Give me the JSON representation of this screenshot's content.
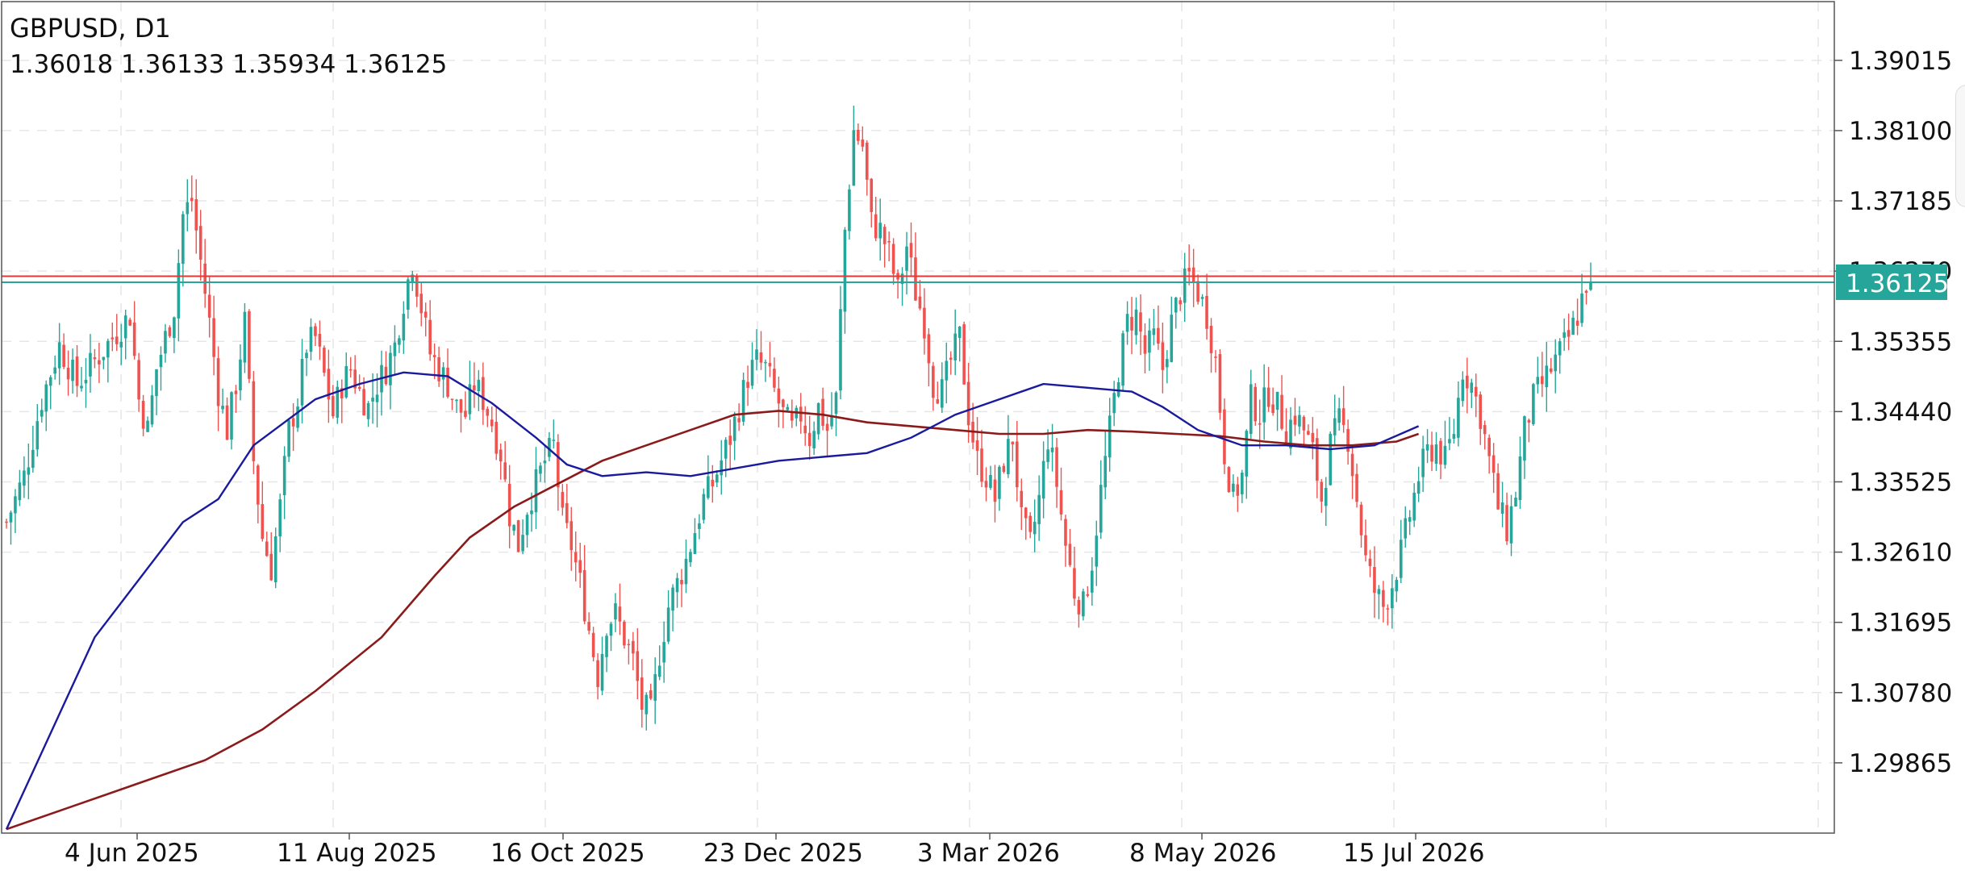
{
  "header": {
    "symbol_timeframe": "GBPUSD, D1",
    "ohlc": "1.36018 1.36133 1.35934 1.36125"
  },
  "price_tag": "1.36125",
  "colors": {
    "bull": "#26a69a",
    "bear": "#ef5350",
    "ma_fast": "#1a1a9e",
    "ma_slow": "#8b1a1a",
    "grid": "#e6e6e6",
    "price_line": "#26a69a",
    "level_line": "#e53935"
  },
  "chart_data": {
    "type": "candlestick",
    "symbol": "GBPUSD",
    "timeframe": "D1",
    "y_ticks": [
      "1.29865",
      "1.30780",
      "1.31695",
      "1.32610",
      "1.33525",
      "1.34440",
      "1.35355",
      "1.36270",
      "1.37185",
      "1.38100",
      "1.39015"
    ],
    "ylim": [
      1.2895,
      1.3978
    ],
    "x_ticks": [
      "4 Jun 2025",
      "11 Aug 2025",
      "16 Oct 2025",
      "23 Dec 2025",
      "3 Mar 2026",
      "8 May 2026",
      "15 Jul 2026"
    ],
    "last_price": 1.36125,
    "level_line": 1.3614,
    "price_anchors": [
      [
        0,
        1.33
      ],
      [
        4,
        1.336
      ],
      [
        8,
        1.346
      ],
      [
        12,
        1.353
      ],
      [
        16,
        1.348
      ],
      [
        20,
        1.351
      ],
      [
        24,
        1.354
      ],
      [
        28,
        1.357
      ],
      [
        30,
        1.346
      ],
      [
        32,
        1.342
      ],
      [
        34,
        1.35
      ],
      [
        38,
        1.358
      ],
      [
        40,
        1.37
      ],
      [
        42,
        1.372
      ],
      [
        44,
        1.364
      ],
      [
        46,
        1.356
      ],
      [
        48,
        1.347
      ],
      [
        50,
        1.342
      ],
      [
        52,
        1.348
      ],
      [
        54,
        1.356
      ],
      [
        56,
        1.338
      ],
      [
        58,
        1.328
      ],
      [
        60,
        1.324
      ],
      [
        62,
        1.332
      ],
      [
        64,
        1.342
      ],
      [
        66,
        1.346
      ],
      [
        68,
        1.353
      ],
      [
        70,
        1.354
      ],
      [
        72,
        1.349
      ],
      [
        74,
        1.344
      ],
      [
        76,
        1.348
      ],
      [
        78,
        1.35
      ],
      [
        80,
        1.347
      ],
      [
        82,
        1.345
      ],
      [
        84,
        1.348
      ],
      [
        86,
        1.35
      ],
      [
        88,
        1.353
      ],
      [
        90,
        1.359
      ],
      [
        92,
        1.364
      ],
      [
        94,
        1.358
      ],
      [
        96,
        1.352
      ],
      [
        98,
        1.35
      ],
      [
        100,
        1.348
      ],
      [
        102,
        1.345
      ],
      [
        104,
        1.344
      ],
      [
        106,
        1.348
      ],
      [
        108,
        1.346
      ],
      [
        110,
        1.343
      ],
      [
        112,
        1.339
      ],
      [
        114,
        1.331
      ],
      [
        116,
        1.327
      ],
      [
        118,
        1.332
      ],
      [
        120,
        1.335
      ],
      [
        122,
        1.338
      ],
      [
        124,
        1.34
      ],
      [
        126,
        1.33
      ],
      [
        128,
        1.327
      ],
      [
        130,
        1.322
      ],
      [
        132,
        1.316
      ],
      [
        134,
        1.31
      ],
      [
        136,
        1.317
      ],
      [
        138,
        1.318
      ],
      [
        140,
        1.315
      ],
      [
        142,
        1.312
      ],
      [
        144,
        1.306
      ],
      [
        146,
        1.305
      ],
      [
        148,
        1.313
      ],
      [
        150,
        1.319
      ],
      [
        152,
        1.322
      ],
      [
        154,
        1.325
      ],
      [
        156,
        1.329
      ],
      [
        158,
        1.333
      ],
      [
        160,
        1.335
      ],
      [
        162,
        1.338
      ],
      [
        164,
        1.341
      ],
      [
        166,
        1.345
      ],
      [
        168,
        1.349
      ],
      [
        170,
        1.351
      ],
      [
        172,
        1.35
      ],
      [
        174,
        1.347
      ],
      [
        176,
        1.344
      ],
      [
        178,
        1.342
      ],
      [
        180,
        1.344
      ],
      [
        182,
        1.341
      ],
      [
        184,
        1.345
      ],
      [
        186,
        1.342
      ],
      [
        188,
        1.346
      ],
      [
        190,
        1.368
      ],
      [
        192,
        1.381
      ],
      [
        194,
        1.379
      ],
      [
        196,
        1.369
      ],
      [
        198,
        1.368
      ],
      [
        200,
        1.365
      ],
      [
        202,
        1.36
      ],
      [
        204,
        1.366
      ],
      [
        206,
        1.36
      ],
      [
        208,
        1.356
      ],
      [
        210,
        1.348
      ],
      [
        212,
        1.347
      ],
      [
        214,
        1.351
      ],
      [
        216,
        1.354
      ],
      [
        218,
        1.344
      ],
      [
        220,
        1.338
      ],
      [
        222,
        1.336
      ],
      [
        224,
        1.333
      ],
      [
        226,
        1.338
      ],
      [
        228,
        1.341
      ],
      [
        230,
        1.33
      ],
      [
        232,
        1.327
      ],
      [
        234,
        1.333
      ],
      [
        236,
        1.341
      ],
      [
        238,
        1.335
      ],
      [
        240,
        1.327
      ],
      [
        242,
        1.321
      ],
      [
        244,
        1.319
      ],
      [
        246,
        1.325
      ],
      [
        248,
        1.334
      ],
      [
        250,
        1.342
      ],
      [
        252,
        1.35
      ],
      [
        254,
        1.356
      ],
      [
        256,
        1.357
      ],
      [
        258,
        1.352
      ],
      [
        260,
        1.354
      ],
      [
        262,
        1.35
      ],
      [
        264,
        1.356
      ],
      [
        266,
        1.36
      ],
      [
        268,
        1.362
      ],
      [
        270,
        1.36
      ],
      [
        272,
        1.357
      ],
      [
        274,
        1.351
      ],
      [
        276,
        1.339
      ],
      [
        278,
        1.333
      ],
      [
        280,
        1.336
      ],
      [
        282,
        1.346
      ],
      [
        284,
        1.344
      ],
      [
        286,
        1.347
      ],
      [
        288,
        1.345
      ],
      [
        290,
        1.342
      ],
      [
        292,
        1.344
      ],
      [
        294,
        1.342
      ],
      [
        296,
        1.339
      ],
      [
        298,
        1.333
      ],
      [
        300,
        1.34
      ],
      [
        302,
        1.343
      ],
      [
        304,
        1.341
      ],
      [
        306,
        1.333
      ],
      [
        308,
        1.325
      ],
      [
        310,
        1.321
      ],
      [
        312,
        1.319
      ],
      [
        314,
        1.322
      ],
      [
        316,
        1.326
      ],
      [
        318,
        1.331
      ],
      [
        320,
        1.336
      ],
      [
        322,
        1.339
      ],
      [
        324,
        1.34
      ],
      [
        326,
        1.338
      ],
      [
        328,
        1.342
      ],
      [
        330,
        1.35
      ],
      [
        332,
        1.348
      ],
      [
        334,
        1.344
      ],
      [
        336,
        1.338
      ],
      [
        338,
        1.332
      ],
      [
        340,
        1.329
      ],
      [
        342,
        1.334
      ],
      [
        344,
        1.342
      ],
      [
        346,
        1.346
      ],
      [
        348,
        1.348
      ],
      [
        350,
        1.35
      ],
      [
        352,
        1.352
      ],
      [
        354,
        1.354
      ],
      [
        356,
        1.357
      ],
      [
        358,
        1.3612
      ]
    ],
    "ma_fast": [
      [
        0,
        1.29
      ],
      [
        20,
        1.315
      ],
      [
        40,
        1.33
      ],
      [
        48,
        1.333
      ],
      [
        56,
        1.34
      ],
      [
        70,
        1.346
      ],
      [
        80,
        1.348
      ],
      [
        90,
        1.3495
      ],
      [
        100,
        1.349
      ],
      [
        110,
        1.3455
      ],
      [
        120,
        1.341
      ],
      [
        127,
        1.3375
      ],
      [
        135,
        1.336
      ],
      [
        145,
        1.3365
      ],
      [
        155,
        1.336
      ],
      [
        165,
        1.337
      ],
      [
        175,
        1.338
      ],
      [
        185,
        1.3385
      ],
      [
        195,
        1.339
      ],
      [
        205,
        1.341
      ],
      [
        215,
        1.344
      ],
      [
        225,
        1.346
      ],
      [
        235,
        1.348
      ],
      [
        245,
        1.3475
      ],
      [
        255,
        1.347
      ],
      [
        262,
        1.345
      ],
      [
        270,
        1.342
      ],
      [
        280,
        1.34
      ],
      [
        290,
        1.34
      ],
      [
        300,
        1.3395
      ],
      [
        310,
        1.34
      ],
      [
        320,
        1.3425
      ]
    ],
    "ma_slow": [
      [
        0,
        1.29
      ],
      [
        15,
        1.293
      ],
      [
        30,
        1.296
      ],
      [
        45,
        1.299
      ],
      [
        58,
        1.303
      ],
      [
        70,
        1.308
      ],
      [
        85,
        1.315
      ],
      [
        97,
        1.323
      ],
      [
        105,
        1.328
      ],
      [
        115,
        1.332
      ],
      [
        125,
        1.335
      ],
      [
        135,
        1.338
      ],
      [
        145,
        1.34
      ],
      [
        155,
        1.342
      ],
      [
        165,
        1.344
      ],
      [
        175,
        1.3445
      ],
      [
        185,
        1.344
      ],
      [
        195,
        1.343
      ],
      [
        205,
        1.3425
      ],
      [
        215,
        1.342
      ],
      [
        225,
        1.3415
      ],
      [
        235,
        1.3415
      ],
      [
        245,
        1.342
      ],
      [
        255,
        1.3418
      ],
      [
        265,
        1.3415
      ],
      [
        275,
        1.3412
      ],
      [
        285,
        1.3405
      ],
      [
        295,
        1.34
      ],
      [
        305,
        1.34
      ],
      [
        315,
        1.3405
      ],
      [
        320,
        1.3415
      ]
    ]
  }
}
